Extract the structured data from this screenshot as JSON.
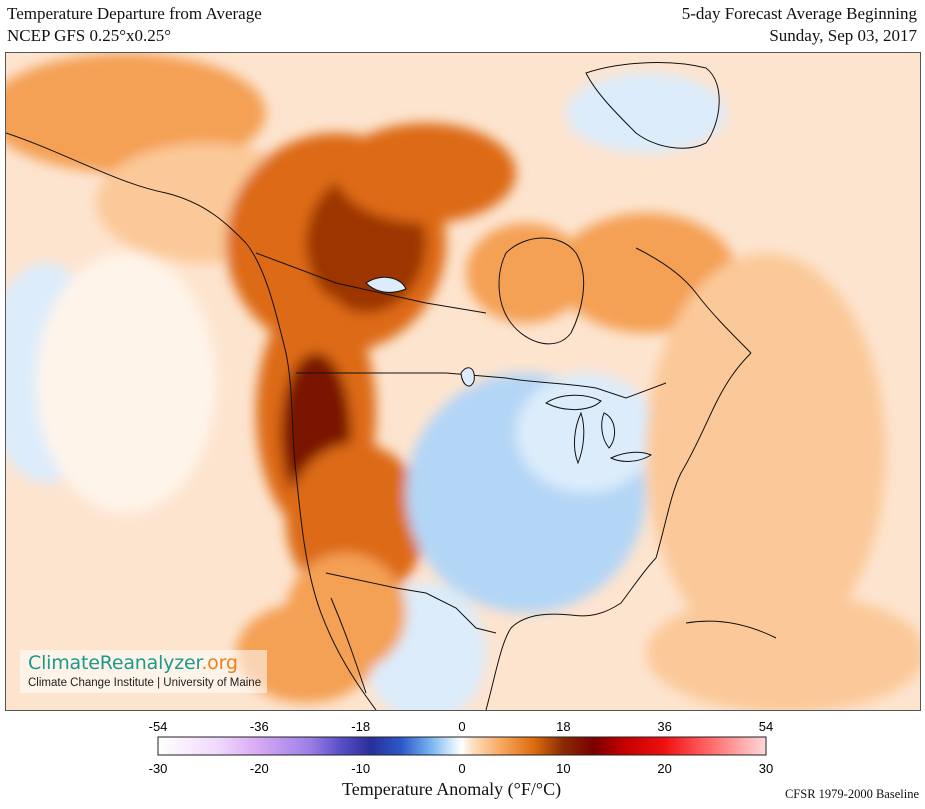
{
  "header": {
    "title_line1": "Temperature Departure from Average",
    "title_line2": "NCEP GFS 0.25°x0.25°",
    "forecast_line1": "5-day Forecast Average Beginning",
    "forecast_line2": "Sunday, Sep 03, 2017"
  },
  "logo": {
    "name_part1": "ClimateReanalyzer",
    "name_part2": ".org",
    "subtitle": "Climate Change Institute | University of Maine"
  },
  "colorbar": {
    "fahrenheit_ticks": [
      "-54",
      "-36",
      "-18",
      "0",
      "18",
      "36",
      "54"
    ],
    "celsius_ticks": [
      "-30",
      "-20",
      "-10",
      "0",
      "10",
      "20",
      "30"
    ],
    "title": "Temperature Anomaly (°F/°C)",
    "baseline": "CFSR 1979-2000 Baseline",
    "stops": [
      {
        "value": -30,
        "color": "#ffffff"
      },
      {
        "value": -24,
        "color": "#f0d8fb"
      },
      {
        "value": -20,
        "color": "#d6a8f5"
      },
      {
        "value": -15,
        "color": "#9b7fe6"
      },
      {
        "value": -12,
        "color": "#5a4fc8"
      },
      {
        "value": -9,
        "color": "#2a2f9a"
      },
      {
        "value": -6,
        "color": "#2c58c8"
      },
      {
        "value": -3,
        "color": "#79b6f0"
      },
      {
        "value": -1,
        "color": "#d6ebfc"
      },
      {
        "value": 0,
        "color": "#ffffff"
      },
      {
        "value": 1,
        "color": "#fde0c4"
      },
      {
        "value": 4,
        "color": "#f7a55a"
      },
      {
        "value": 7,
        "color": "#de6e10"
      },
      {
        "value": 10,
        "color": "#8a2a04"
      },
      {
        "value": 13,
        "color": "#7a0000"
      },
      {
        "value": 16,
        "color": "#c40000"
      },
      {
        "value": 20,
        "color": "#f01010"
      },
      {
        "value": 24,
        "color": "#ff6060"
      },
      {
        "value": 30,
        "color": "#ffd8d8"
      }
    ]
  },
  "map": {
    "colors": {
      "ocean_base": "#fde4cf",
      "warm_light": "#fbc999",
      "warm_mid": "#f4a055",
      "warm_strong": "#dd6a12",
      "warm_dark": "#9c3504",
      "warm_darkest": "#7a1800",
      "cool_light": "#dcecfb",
      "cool_mid": "#b4d6f6",
      "neutral": "#fff4ea",
      "boundary": "#111111"
    }
  }
}
